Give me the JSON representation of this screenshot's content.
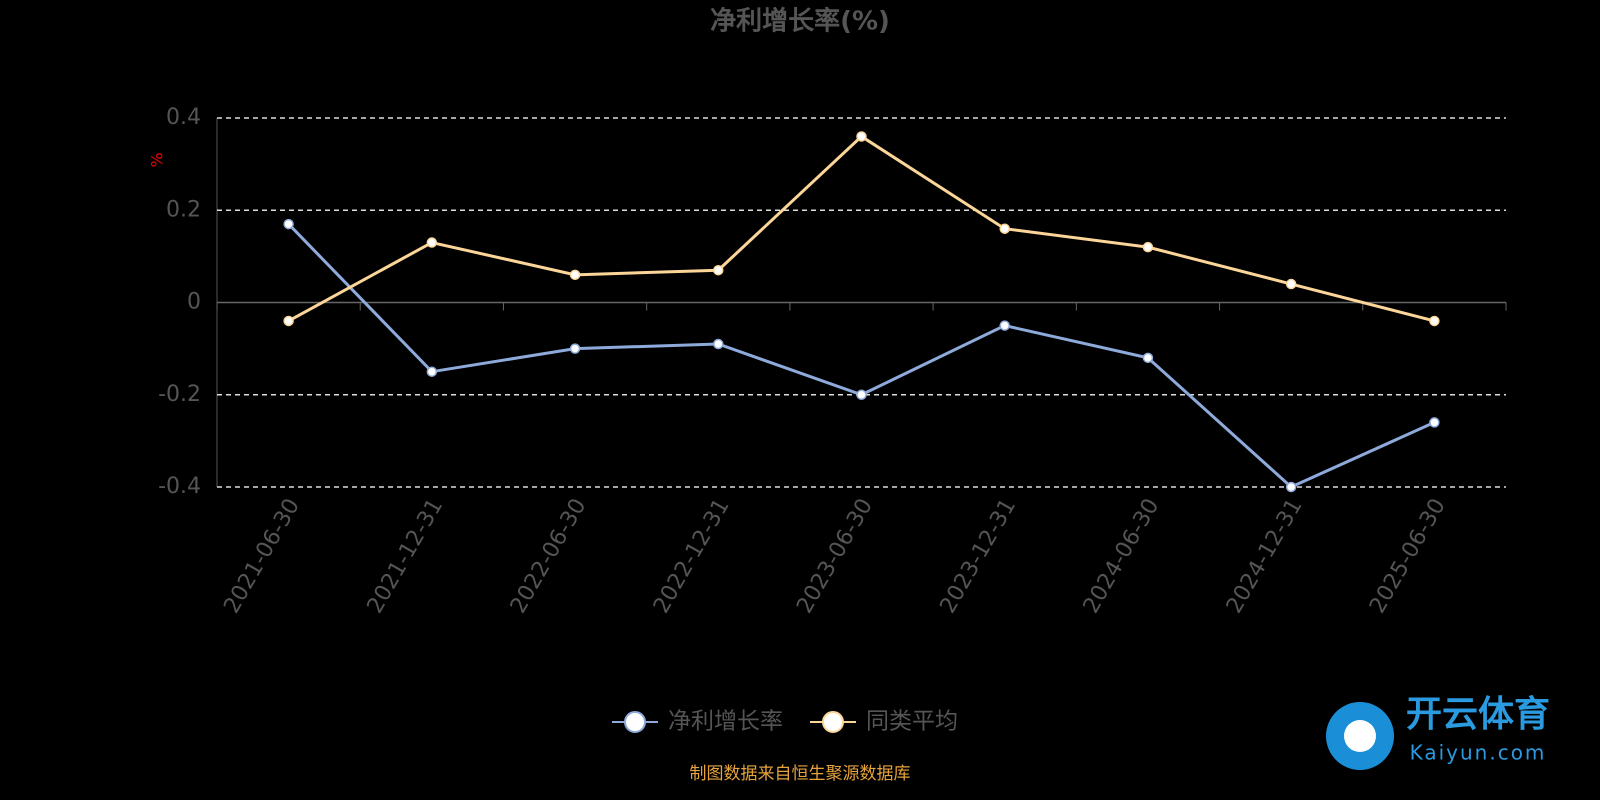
{
  "chart_data": {
    "type": "line",
    "title": "净利增长率(%)",
    "y_label": "%",
    "categories": [
      "2021-06-30",
      "2021-12-31",
      "2022-06-30",
      "2022-12-31",
      "2023-06-30",
      "2023-12-31",
      "2024-06-30",
      "2024-12-31",
      "2025-06-30"
    ],
    "series": [
      {
        "name": "净利增长率",
        "color": "#8eaadb",
        "values": [
          0.17,
          -0.15,
          -0.1,
          -0.09,
          -0.2,
          -0.05,
          -0.12,
          -0.4,
          -0.26
        ]
      },
      {
        "name": "同类平均",
        "color": "#fcd699",
        "values": [
          -0.04,
          0.13,
          0.06,
          0.07,
          0.36,
          0.16,
          0.12,
          0.04,
          -0.04
        ]
      }
    ],
    "ylim": [
      -0.4,
      0.4
    ],
    "yticks": [
      -0.4,
      -0.2,
      0,
      0.2,
      0.4
    ],
    "grid": true,
    "legend": "bottom",
    "source": "制图数据来自恒生聚源数据库"
  },
  "watermark": {
    "title": "开云体育",
    "subtitle": "Kaiyun.com"
  }
}
